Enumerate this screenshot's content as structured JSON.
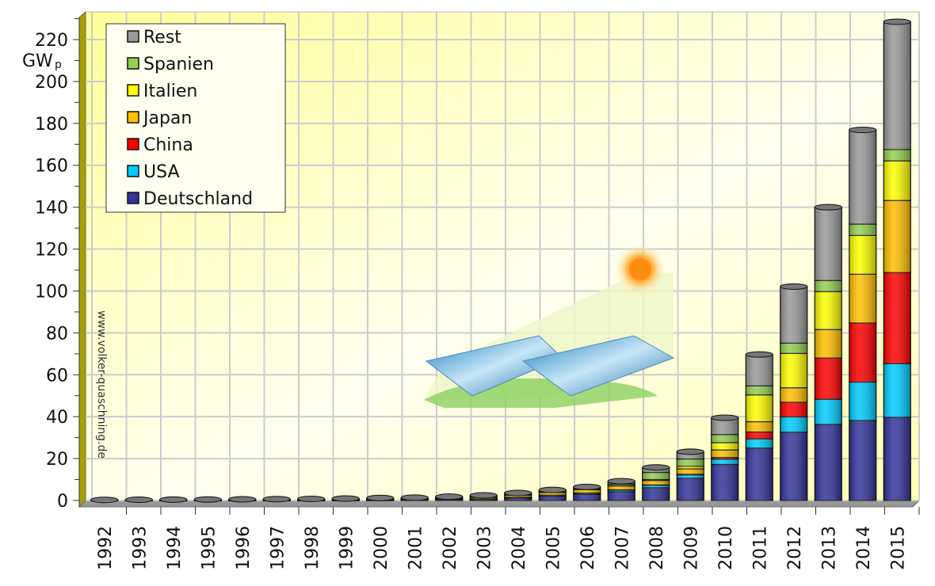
{
  "chart_data": {
    "type": "bar",
    "stacked": true,
    "title": "",
    "xlabel": "",
    "ylabel": "GW",
    "ylabel_sub": "p",
    "ylim": [
      0,
      220
    ],
    "yticks": [
      0,
      20,
      40,
      60,
      80,
      100,
      120,
      140,
      160,
      180,
      200,
      220
    ],
    "grid": true,
    "legend_position": "top-left",
    "watermark": "www.volker-quaschning.de",
    "categories": [
      "1992",
      "1993",
      "1994",
      "1995",
      "1996",
      "1997",
      "1998",
      "1999",
      "2000",
      "2001",
      "2002",
      "2003",
      "2004",
      "2005",
      "2006",
      "2007",
      "2008",
      "2009",
      "2010",
      "2011",
      "2012",
      "2013",
      "2014",
      "2015"
    ],
    "series": [
      {
        "name": "Deutschland",
        "color": "#33339a",
        "values": [
          0.01,
          0.01,
          0.01,
          0.02,
          0.03,
          0.04,
          0.05,
          0.07,
          0.11,
          0.2,
          0.3,
          0.43,
          1.1,
          2.0,
          2.9,
          4.2,
          6.1,
          10.6,
          17.2,
          25.0,
          32.6,
          36.3,
          38.2,
          39.7
        ]
      },
      {
        "name": "USA",
        "color": "#00ccff",
        "values": [
          0.04,
          0.05,
          0.06,
          0.07,
          0.08,
          0.09,
          0.1,
          0.12,
          0.14,
          0.17,
          0.21,
          0.28,
          0.38,
          0.48,
          0.6,
          0.8,
          1.2,
          1.6,
          2.5,
          4.4,
          7.3,
          12.0,
          18.3,
          25.6
        ]
      },
      {
        "name": "China",
        "color": "#ff0000",
        "values": [
          0.01,
          0.01,
          0.01,
          0.01,
          0.01,
          0.01,
          0.01,
          0.02,
          0.02,
          0.03,
          0.04,
          0.05,
          0.06,
          0.07,
          0.08,
          0.1,
          0.14,
          0.3,
          0.8,
          3.3,
          7.0,
          19.7,
          28.2,
          43.5
        ]
      },
      {
        "name": "Japan",
        "color": "#ffc000",
        "values": [
          0.02,
          0.02,
          0.03,
          0.04,
          0.06,
          0.09,
          0.13,
          0.21,
          0.33,
          0.45,
          0.64,
          0.86,
          1.1,
          1.4,
          1.7,
          1.9,
          2.1,
          2.6,
          3.6,
          4.9,
          6.9,
          13.6,
          23.3,
          34.4
        ]
      },
      {
        "name": "Italien",
        "color": "#ffff00",
        "values": [
          0.01,
          0.01,
          0.01,
          0.02,
          0.02,
          0.02,
          0.02,
          0.02,
          0.02,
          0.02,
          0.02,
          0.03,
          0.03,
          0.04,
          0.05,
          0.12,
          0.46,
          1.2,
          3.5,
          12.8,
          16.4,
          18.1,
          18.5,
          18.9
        ]
      },
      {
        "name": "Spanien",
        "color": "#92d050",
        "values": [
          0.01,
          0.01,
          0.01,
          0.01,
          0.01,
          0.01,
          0.01,
          0.01,
          0.01,
          0.01,
          0.01,
          0.02,
          0.03,
          0.06,
          0.15,
          0.7,
          3.4,
          3.5,
          3.9,
          4.3,
          4.9,
          5.3,
          5.4,
          5.4
        ]
      },
      {
        "name": "Rest",
        "color": "#999999",
        "values": [
          0.2,
          0.25,
          0.3,
          0.3,
          0.35,
          0.4,
          0.45,
          0.5,
          0.6,
          0.5,
          0.6,
          0.8,
          0.9,
          1.0,
          1.0,
          1.4,
          2.4,
          3.5,
          8.0,
          15.0,
          27.0,
          35.0,
          45.0,
          61.0
        ]
      }
    ]
  }
}
